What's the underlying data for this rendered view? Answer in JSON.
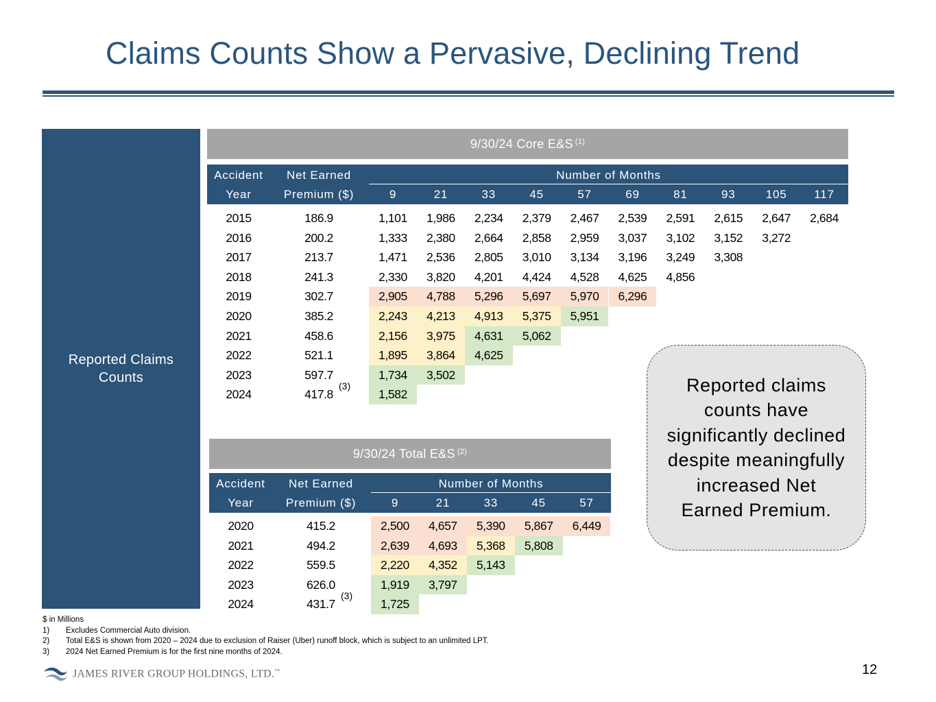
{
  "title": "Claims Counts Show a Pervasive, Declining Trend",
  "side_label": "Reported Claims Counts",
  "colors": {
    "navy": "#2c5378",
    "title_blue": "#2a557d",
    "grey_bar": "#a5a5a5",
    "red": "#fbe0d2",
    "yellow": "#fdf1c9",
    "green": "#d5e8c7"
  },
  "core": {
    "section_title": "9/30/24 Core E&S",
    "section_note": "(1)",
    "hdr_year_1": "Accident",
    "hdr_year_2": "Year",
    "hdr_prem_1": "Net Earned",
    "hdr_prem_2": "Premium ($)",
    "hdr_months": "Number of Months",
    "months": [
      "9",
      "21",
      "33",
      "45",
      "57",
      "69",
      "81",
      "93",
      "105",
      "117"
    ],
    "rows": [
      {
        "year": "2015",
        "premium": "186.9",
        "values": [
          "1,101",
          "1,986",
          "2,234",
          "2,379",
          "2,467",
          "2,539",
          "2,591",
          "2,615",
          "2,647",
          "2,684"
        ],
        "shade": [
          "",
          "",
          "",
          "",
          "",
          "",
          "",
          "",
          "",
          ""
        ]
      },
      {
        "year": "2016",
        "premium": "200.2",
        "values": [
          "1,333",
          "2,380",
          "2,664",
          "2,858",
          "2,959",
          "3,037",
          "3,102",
          "3,152",
          "3,272"
        ],
        "shade": [
          "",
          "",
          "",
          "",
          "",
          "",
          "",
          "",
          ""
        ]
      },
      {
        "year": "2017",
        "premium": "213.7",
        "values": [
          "1,471",
          "2,536",
          "2,805",
          "3,010",
          "3,134",
          "3,196",
          "3,249",
          "3,308"
        ],
        "shade": [
          "",
          "",
          "",
          "",
          "",
          "",
          "",
          ""
        ]
      },
      {
        "year": "2018",
        "premium": "241.3",
        "values": [
          "2,330",
          "3,820",
          "4,201",
          "4,424",
          "4,528",
          "4,625",
          "4,856"
        ],
        "shade": [
          "",
          "",
          "",
          "",
          "",
          "",
          ""
        ]
      },
      {
        "year": "2019",
        "premium": "302.7",
        "values": [
          "2,905",
          "4,788",
          "5,296",
          "5,697",
          "5,970",
          "6,296"
        ],
        "shade": [
          "red",
          "red",
          "red",
          "red",
          "red",
          "red"
        ]
      },
      {
        "year": "2020",
        "premium": "385.2",
        "values": [
          "2,243",
          "4,213",
          "4,913",
          "5,375",
          "5,951"
        ],
        "shade": [
          "yellow",
          "yellow",
          "yellow",
          "yellow",
          "green"
        ]
      },
      {
        "year": "2021",
        "premium": "458.6",
        "values": [
          "2,156",
          "3,975",
          "4,631",
          "5,062"
        ],
        "shade": [
          "yellow",
          "yellow",
          "green",
          "green"
        ]
      },
      {
        "year": "2022",
        "premium": "521.1",
        "values": [
          "1,895",
          "3,864",
          "4,625"
        ],
        "shade": [
          "yellow",
          "yellow",
          "green"
        ]
      },
      {
        "year": "2023",
        "premium": "597.7",
        "values": [
          "1,734",
          "3,502"
        ],
        "shade": [
          "green",
          "green"
        ]
      },
      {
        "year": "2024",
        "premium": "417.8",
        "values": [
          "1,582"
        ],
        "shade": [
          "green"
        ],
        "note": "(3)"
      }
    ]
  },
  "total": {
    "section_title": "9/30/24 Total E&S",
    "section_note": "(2)",
    "hdr_year_1": "Accident",
    "hdr_year_2": "Year",
    "hdr_prem_1": "Net Earned",
    "hdr_prem_2": "Premium ($)",
    "hdr_months": "Number of Months",
    "months": [
      "9",
      "21",
      "33",
      "45",
      "57"
    ],
    "rows": [
      {
        "year": "2020",
        "premium": "415.2",
        "values": [
          "2,500",
          "4,657",
          "5,390",
          "5,867",
          "6,449"
        ],
        "shade": [
          "red",
          "red",
          "red",
          "red",
          "red"
        ]
      },
      {
        "year": "2021",
        "premium": "494.2",
        "values": [
          "2,639",
          "4,693",
          "5,368",
          "5,808"
        ],
        "shade": [
          "red",
          "red",
          "yellow",
          "green"
        ]
      },
      {
        "year": "2022",
        "premium": "559.5",
        "values": [
          "2,220",
          "4,352",
          "5,143"
        ],
        "shade": [
          "yellow",
          "yellow",
          "green"
        ]
      },
      {
        "year": "2023",
        "premium": "626.0",
        "values": [
          "1,919",
          "3,797"
        ],
        "shade": [
          "green",
          "green"
        ]
      },
      {
        "year": "2024",
        "premium": "431.7",
        "values": [
          "1,725"
        ],
        "shade": [
          "green"
        ],
        "note": "(3)"
      }
    ]
  },
  "callout": "Reported claims counts have significantly declined despite meaningfully increased Net Earned Premium.",
  "footnotes": {
    "units": "$ in Millions",
    "items": [
      {
        "num": "1)",
        "text": "Excludes Commercial Auto division."
      },
      {
        "num": "2)",
        "text": "Total E&S is shown from  2020 – 2024  due to exclusion of Raiser (Uber) runoff block, which is subject to an unlimited LPT."
      },
      {
        "num": "3)",
        "text": "2024 Net Earned Premium is for the first nine months of 2024."
      }
    ]
  },
  "logo_text": "JAMES RIVER GROUP HOLDINGS, LTD.",
  "logo_mark": "™",
  "page_number": "12"
}
